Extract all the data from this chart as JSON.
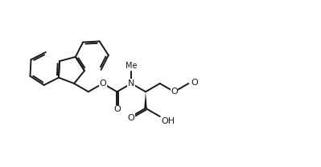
{
  "bg_color": "#ffffff",
  "line_color": "#1a1a1a",
  "line_width": 1.4,
  "fig_width": 3.99,
  "fig_height": 2.08,
  "dpi": 100,
  "xlim": [
    0,
    10
  ],
  "ylim": [
    0,
    5.2
  ]
}
